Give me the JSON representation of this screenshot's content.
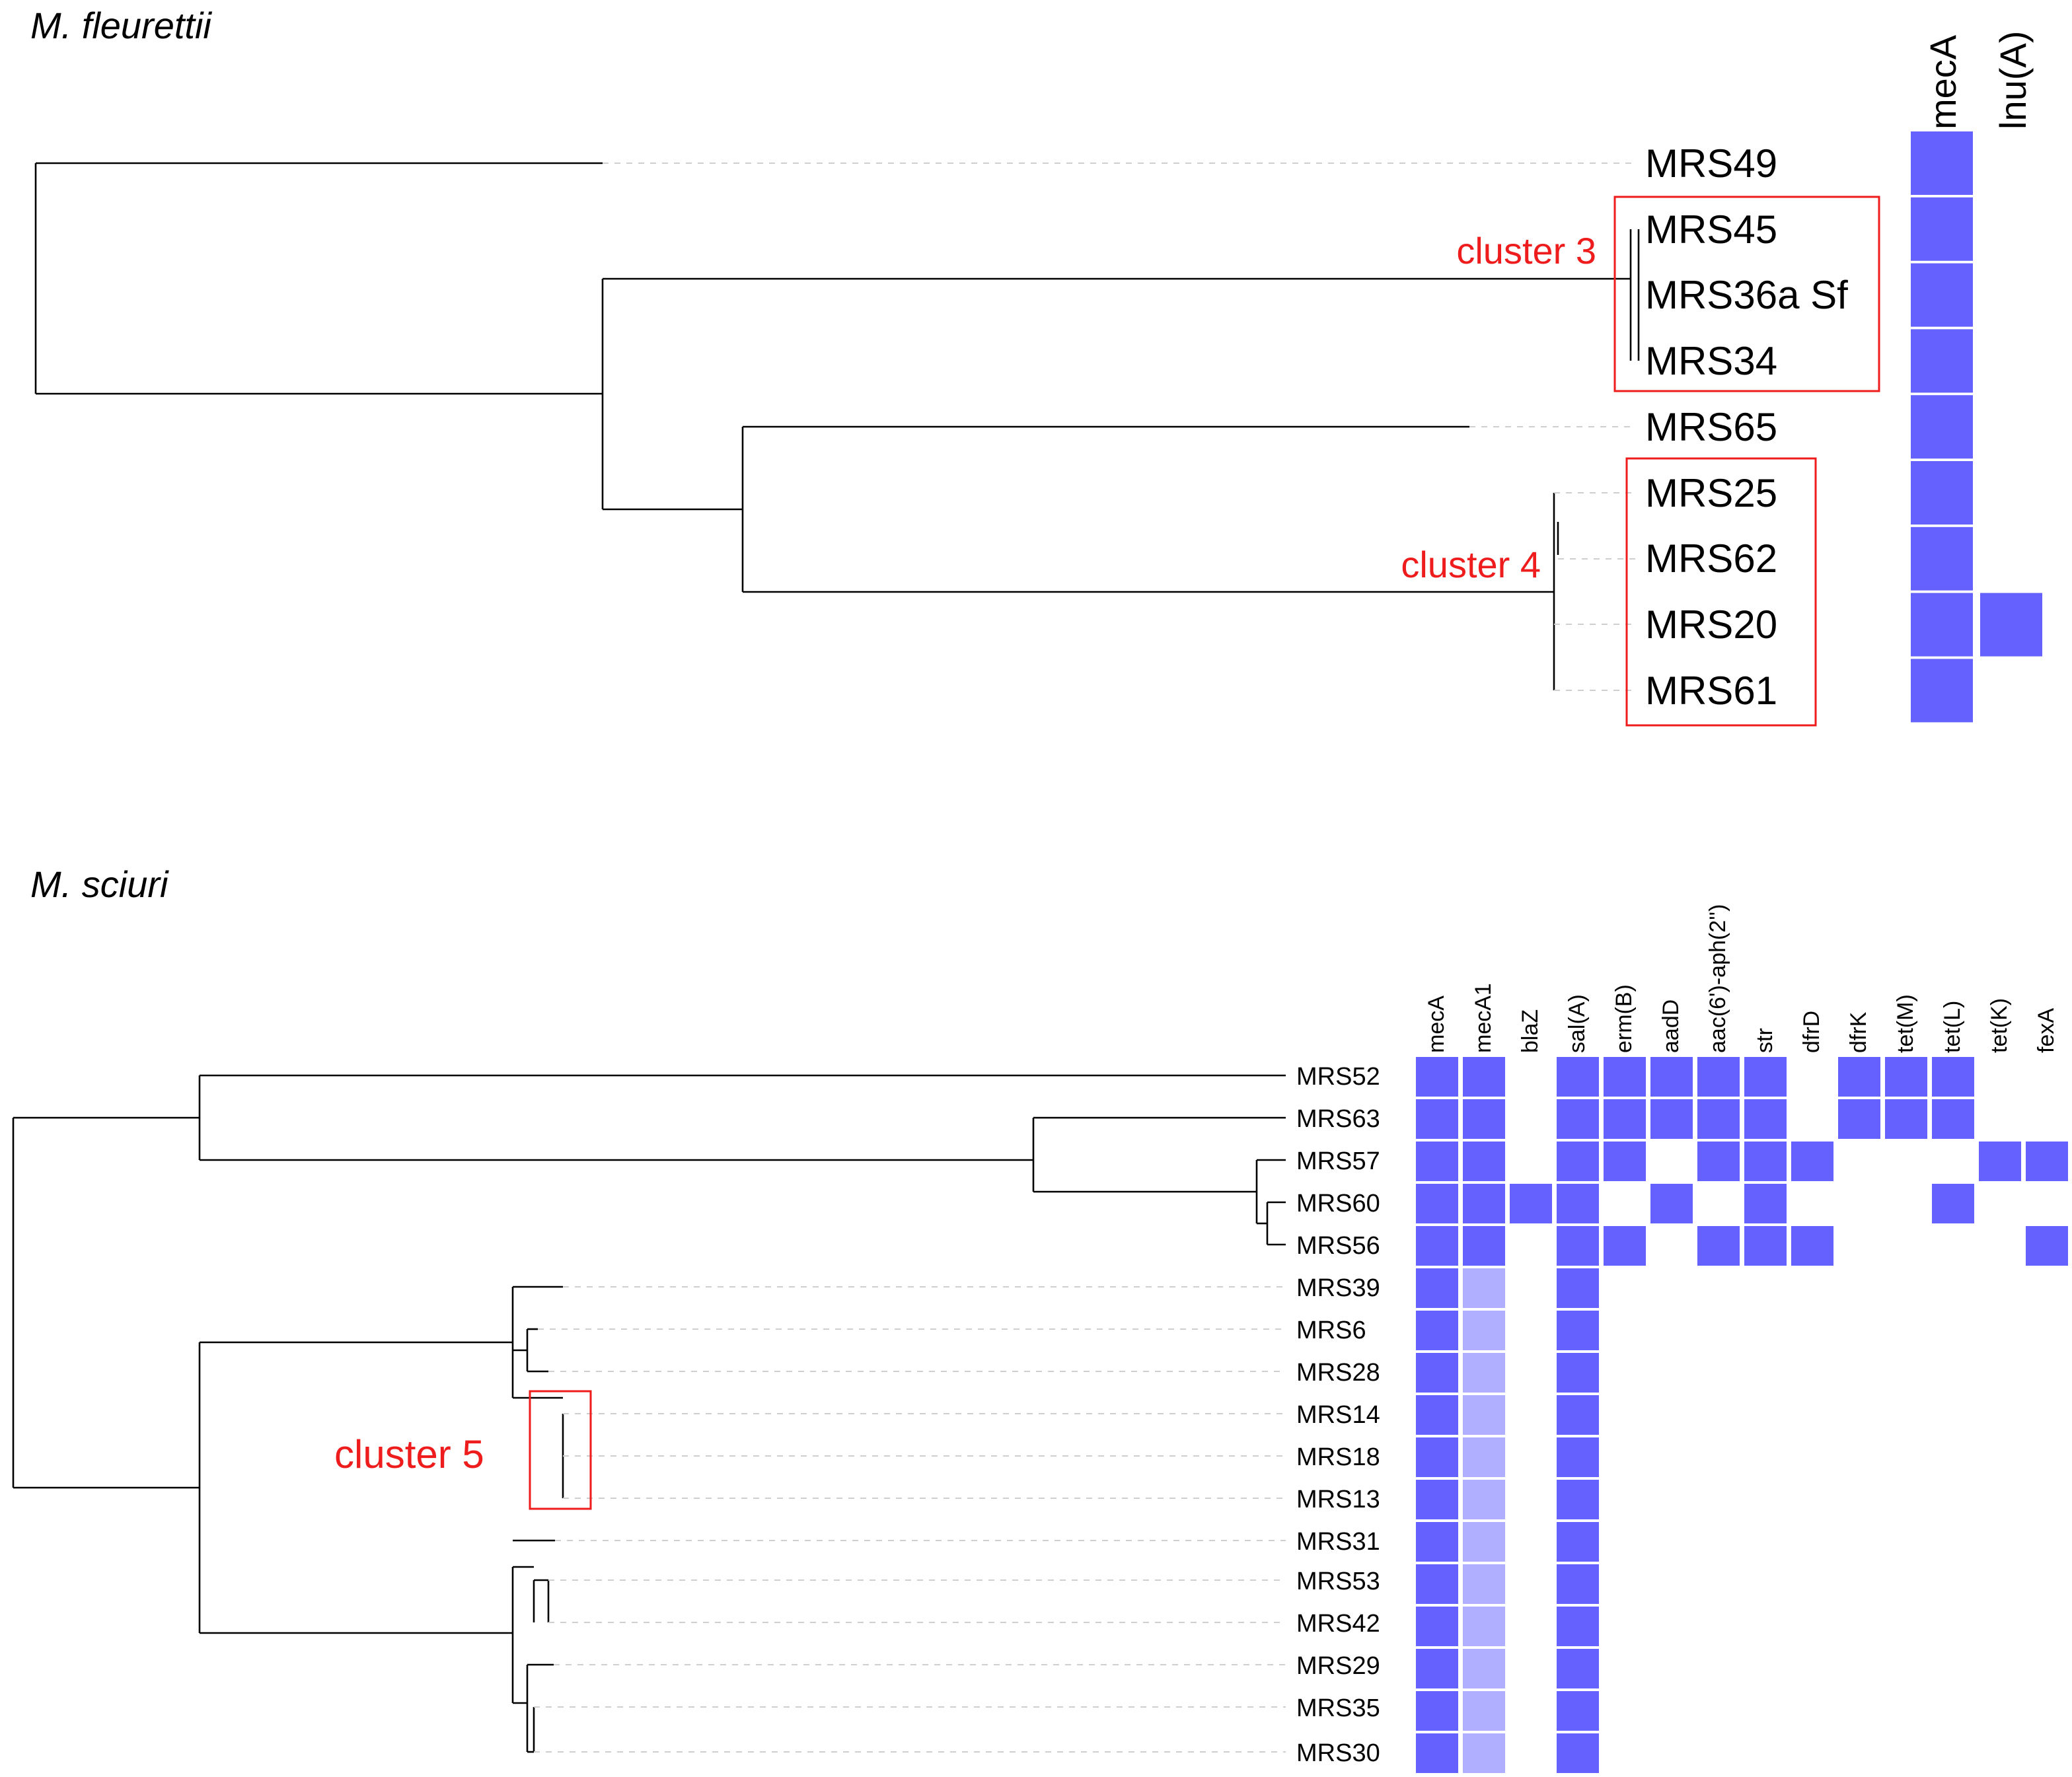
{
  "colors": {
    "present": "#6461ff",
    "present_light": "#b0aeff",
    "cluster": "#ee1c1c",
    "tree": "#000000",
    "guide": "#cfcfcf"
  },
  "fleurettii": {
    "title": "M. fleurettii",
    "genes": [
      "mecA",
      "lnu(A)"
    ],
    "leaves": [
      "MRS49",
      "MRS45",
      "MRS36a Sf",
      "MRS34",
      "MRS65",
      "MRS25",
      "MRS62",
      "MRS20",
      "MRS61"
    ],
    "presence": [
      [
        1,
        0
      ],
      [
        1,
        0
      ],
      [
        1,
        0
      ],
      [
        1,
        0
      ],
      [
        1,
        0
      ],
      [
        1,
        0
      ],
      [
        1,
        0
      ],
      [
        1,
        1
      ],
      [
        1,
        0
      ]
    ],
    "clusters": [
      {
        "label": "cluster 3",
        "leaves": [
          "MRS45",
          "MRS36a Sf",
          "MRS34"
        ]
      },
      {
        "label": "cluster 4",
        "leaves": [
          "MRS25",
          "MRS62",
          "MRS20",
          "MRS61"
        ]
      }
    ]
  },
  "sciuri": {
    "title": "M. sciuri",
    "genes": [
      "mecA",
      "mecA1",
      "blaZ",
      "sal(A)",
      "erm(B)",
      "aadD",
      "aac(6')-aph(2'')",
      "str",
      "dfrD",
      "dfrK",
      "tet(M)",
      "tet(L)",
      "tet(K)",
      "fexA"
    ],
    "leaves": [
      "MRS52",
      "MRS63",
      "MRS57",
      "MRS60",
      "MRS56",
      "MRS39",
      "MRS6",
      "MRS28",
      "MRS14",
      "MRS18",
      "MRS13",
      "MRS31",
      "MRS53",
      "MRS42",
      "MRS29",
      "MRS35",
      "MRS30"
    ],
    "presence": [
      [
        1,
        1,
        0,
        1,
        1,
        1,
        1,
        1,
        0,
        1,
        1,
        1,
        0,
        0
      ],
      [
        1,
        1,
        0,
        1,
        1,
        1,
        1,
        1,
        0,
        1,
        1,
        1,
        0,
        0
      ],
      [
        1,
        1,
        0,
        1,
        1,
        0,
        1,
        1,
        1,
        0,
        0,
        0,
        1,
        1
      ],
      [
        1,
        1,
        1,
        1,
        0,
        1,
        0,
        1,
        0,
        0,
        0,
        1,
        0,
        0
      ],
      [
        1,
        1,
        0,
        1,
        1,
        0,
        1,
        1,
        1,
        0,
        0,
        0,
        0,
        1
      ],
      [
        1,
        2,
        0,
        1,
        0,
        0,
        0,
        0,
        0,
        0,
        0,
        0,
        0,
        0
      ],
      [
        1,
        2,
        0,
        1,
        0,
        0,
        0,
        0,
        0,
        0,
        0,
        0,
        0,
        0
      ],
      [
        1,
        2,
        0,
        1,
        0,
        0,
        0,
        0,
        0,
        0,
        0,
        0,
        0,
        0
      ],
      [
        1,
        2,
        0,
        1,
        0,
        0,
        0,
        0,
        0,
        0,
        0,
        0,
        0,
        0
      ],
      [
        1,
        2,
        0,
        1,
        0,
        0,
        0,
        0,
        0,
        0,
        0,
        0,
        0,
        0
      ],
      [
        1,
        2,
        0,
        1,
        0,
        0,
        0,
        0,
        0,
        0,
        0,
        0,
        0,
        0
      ],
      [
        1,
        2,
        0,
        1,
        0,
        0,
        0,
        0,
        0,
        0,
        0,
        0,
        0,
        0
      ],
      [
        1,
        2,
        0,
        1,
        0,
        0,
        0,
        0,
        0,
        0,
        0,
        0,
        0,
        0
      ],
      [
        1,
        2,
        0,
        1,
        0,
        0,
        0,
        0,
        0,
        0,
        0,
        0,
        0,
        0
      ],
      [
        1,
        2,
        0,
        1,
        0,
        0,
        0,
        0,
        0,
        0,
        0,
        0,
        0,
        0
      ],
      [
        1,
        2,
        0,
        1,
        0,
        0,
        0,
        0,
        0,
        0,
        0,
        0,
        0,
        0
      ],
      [
        1,
        2,
        0,
        1,
        0,
        0,
        0,
        0,
        0,
        0,
        0,
        0,
        0,
        0
      ]
    ],
    "clusters": [
      {
        "label": "cluster 5",
        "leaves": [
          "MRS14",
          "MRS18",
          "MRS13"
        ]
      }
    ]
  }
}
